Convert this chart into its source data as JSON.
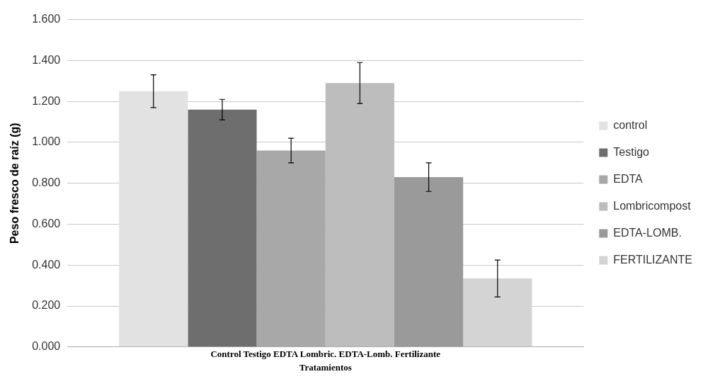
{
  "chart_data": {
    "type": "bar",
    "ylabel": "Peso fresco de raíz (g)",
    "xlabel": "Tratamientos",
    "categories": [
      "Control Testigo EDTA Lombric. EDTA-Lomb. Fertilizante"
    ],
    "series": [
      {
        "name": "control",
        "color": "#e2e2e2",
        "values": [
          1.25
        ],
        "errors": [
          0.08
        ]
      },
      {
        "name": "Testigo",
        "color": "#6e6e6e",
        "values": [
          1.16
        ],
        "errors": [
          0.05
        ]
      },
      {
        "name": "EDTA",
        "color": "#a8a8a8",
        "values": [
          0.96
        ],
        "errors": [
          0.06
        ]
      },
      {
        "name": "Lombricompost",
        "color": "#bdbdbd",
        "values": [
          1.29
        ],
        "errors": [
          0.1
        ]
      },
      {
        "name": "EDTA-LOMB.",
        "color": "#9a9a9a",
        "values": [
          0.83
        ],
        "errors": [
          0.07
        ]
      },
      {
        "name": "FERTILIZANTE",
        "color": "#d4d4d4",
        "values": [
          0.335
        ],
        "errors": [
          0.09
        ]
      }
    ],
    "ylim": [
      0,
      1.6
    ],
    "yticks": [
      {
        "value": 0,
        "label": "0.000"
      },
      {
        "value": 0.2,
        "label": "0.200"
      },
      {
        "value": 0.4,
        "label": "0.400"
      },
      {
        "value": 0.6,
        "label": "0.600"
      },
      {
        "value": 0.8,
        "label": "0.800"
      },
      {
        "value": 1,
        "label": "1.000"
      },
      {
        "value": 1.2,
        "label": "1.200"
      },
      {
        "value": 1.4,
        "label": "1.400"
      },
      {
        "value": 1.6,
        "label": "1.600"
      }
    ],
    "grid": "y",
    "legend": "right"
  }
}
